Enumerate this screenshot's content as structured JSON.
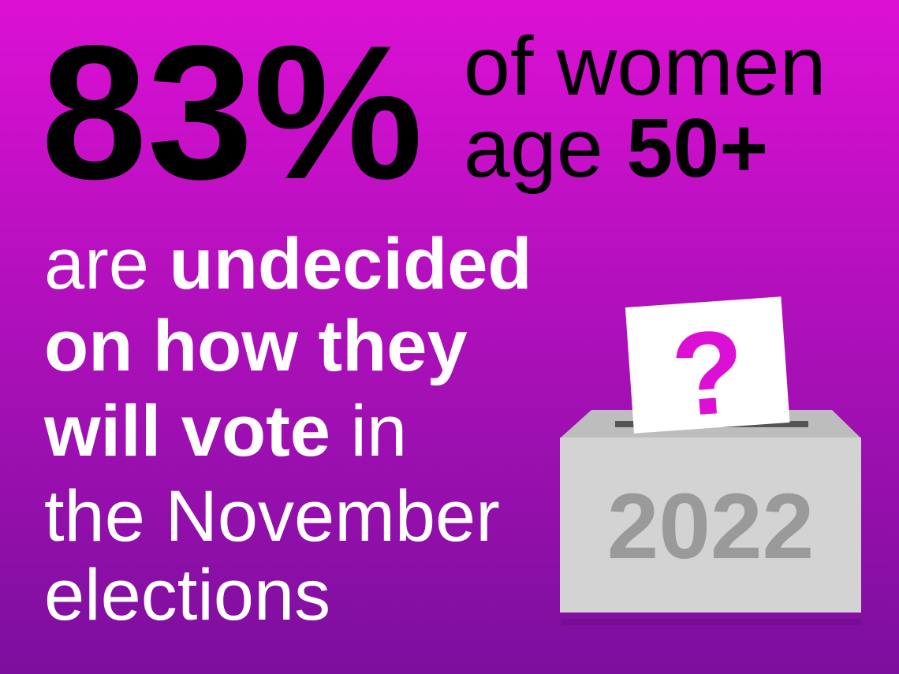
{
  "stat": "83%",
  "subject": {
    "line1": "of women",
    "line2": [
      "age",
      "50+"
    ]
  },
  "message": [
    [
      "are",
      "undecided"
    ],
    [
      "on how they"
    ],
    [
      "will vote",
      "in"
    ],
    [
      "the November"
    ],
    [
      "elections"
    ]
  ],
  "ballot": {
    "mark": "?",
    "year": "2022"
  }
}
